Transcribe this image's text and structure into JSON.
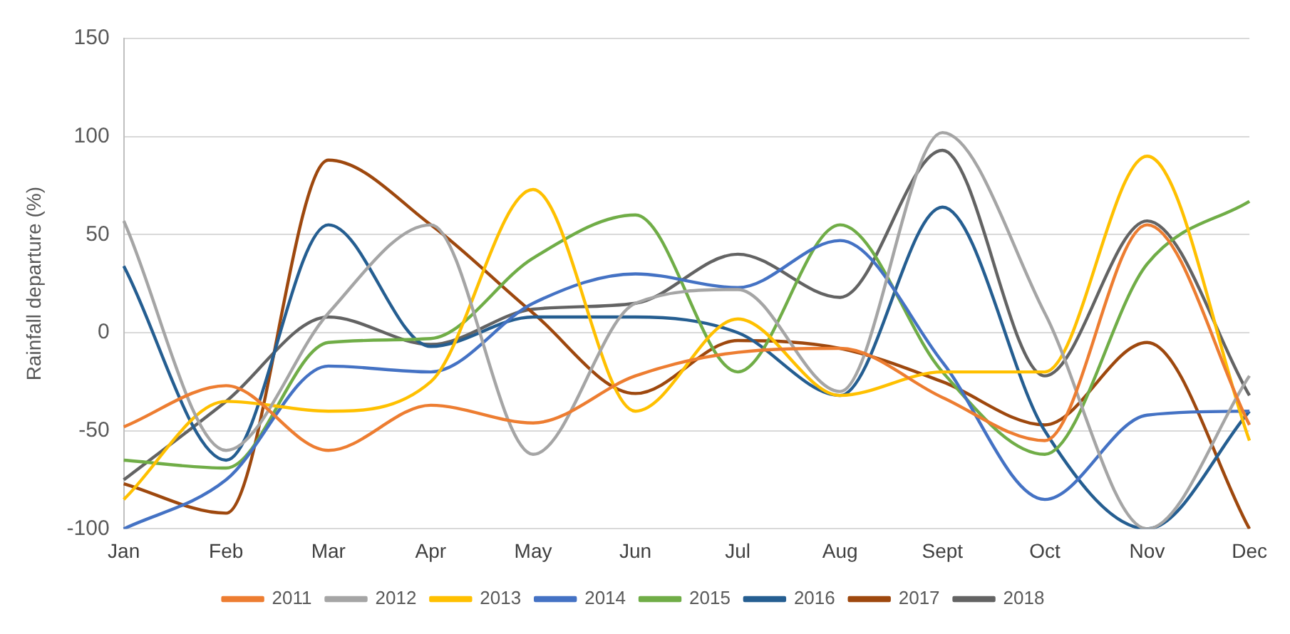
{
  "chart_data": {
    "type": "line",
    "ylabel": "Rainfall departure (%)",
    "categories": [
      "Jan",
      "Feb",
      "Mar",
      "Apr",
      "May",
      "Jun",
      "Jul",
      "Aug",
      "Sept",
      "Oct",
      "Nov",
      "Dec"
    ],
    "series": [
      {
        "name": "2011",
        "color": "#ed7d31",
        "values": [
          -48,
          -27,
          -60,
          -37,
          -46,
          -22,
          -10,
          -8,
          -33,
          -55,
          55,
          -47
        ]
      },
      {
        "name": "2012",
        "color": "#a5a5a5",
        "values": [
          57,
          -60,
          10,
          55,
          -62,
          15,
          22,
          -30,
          102,
          10,
          -100,
          -22
        ]
      },
      {
        "name": "2013",
        "color": "#ffc000",
        "values": [
          -85,
          -35,
          -40,
          -25,
          73,
          -40,
          7,
          -32,
          -20,
          -20,
          90,
          -55
        ]
      },
      {
        "name": "2014",
        "color": "#4472c4",
        "values": [
          -100,
          -75,
          -17,
          -20,
          15,
          30,
          23,
          47,
          -15,
          -85,
          -42,
          -40
        ]
      },
      {
        "name": "2015",
        "color": "#70ad47",
        "values": [
          -65,
          -69,
          -5,
          -3,
          38,
          60,
          -20,
          55,
          -20,
          -62,
          35,
          67
        ]
      },
      {
        "name": "2016",
        "color": "#255e91",
        "values": [
          34,
          -65,
          55,
          -7,
          8,
          8,
          0,
          -32,
          64,
          -50,
          -100,
          -40
        ]
      },
      {
        "name": "2017",
        "color": "#9e480e",
        "values": [
          -77,
          -92,
          88,
          55,
          10,
          -31,
          -4,
          -8,
          -25,
          -47,
          -5,
          -100
        ]
      },
      {
        "name": "2018",
        "color": "#636363",
        "values": [
          -75,
          -35,
          8,
          -6,
          12,
          15,
          40,
          18,
          93,
          -22,
          57,
          -32
        ]
      }
    ],
    "ylim": [
      -100,
      150
    ],
    "yticks": [
      -100,
      -50,
      0,
      50,
      100,
      150
    ],
    "grid": "y",
    "legend": "bottom",
    "marker": "none",
    "line_style": "solid"
  }
}
